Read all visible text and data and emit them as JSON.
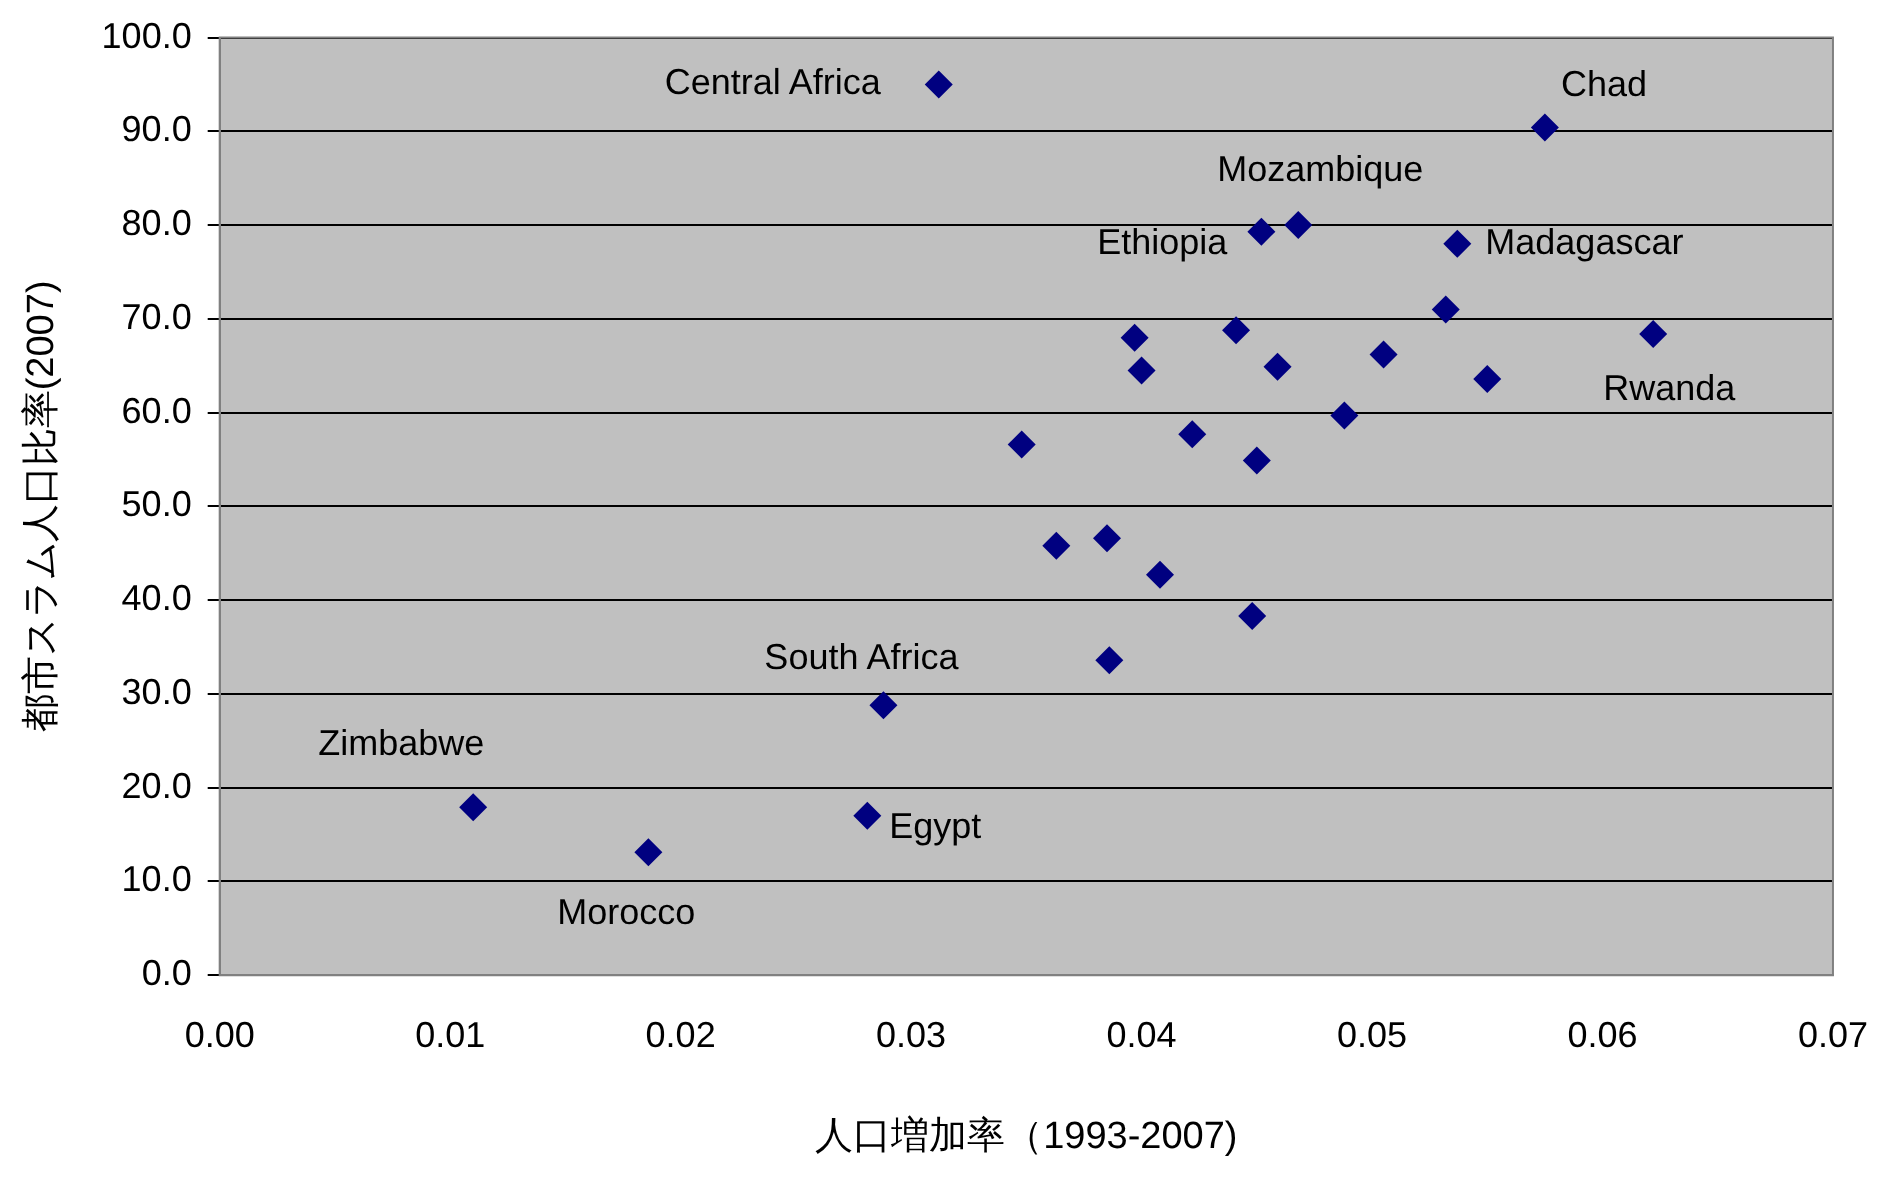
{
  "chart_data": {
    "type": "scatter",
    "xlabel": "人口増加率（1993-2007)",
    "ylabel": "都市スラム人口比率(2007)",
    "series": [
      {
        "color": "#000080",
        "x": [
          0.0312,
          0.0575,
          0.0468,
          0.0452,
          0.0537,
          0.0397,
          0.0441,
          0.0532,
          0.0622,
          0.04,
          0.0459,
          0.0505,
          0.055,
          0.0488,
          0.0422,
          0.0348,
          0.045,
          0.0363,
          0.0385,
          0.0408,
          0.0448,
          0.0386,
          0.0288,
          0.011,
          0.0281,
          0.0186
        ],
        "values": [
          95.0,
          90.4,
          80.0,
          79.3,
          78.0,
          68.0,
          68.8,
          71.0,
          68.4,
          64.5,
          64.9,
          66.2,
          63.6,
          59.7,
          57.7,
          56.6,
          54.9,
          45.8,
          46.6,
          42.7,
          38.3,
          33.6,
          28.8,
          17.9,
          17.0,
          13.1
        ]
      }
    ],
    "xlim": [
      0,
      0.07
    ],
    "xticks": [
      {
        "value": 0,
        "label": "0.00"
      },
      {
        "value": 0.01,
        "label": "0.01"
      },
      {
        "value": 0.02,
        "label": "0.02"
      },
      {
        "value": 0.03,
        "label": "0.03"
      },
      {
        "value": 0.04,
        "label": "0.04"
      },
      {
        "value": 0.05,
        "label": "0.05"
      },
      {
        "value": 0.06,
        "label": "0.06"
      },
      {
        "value": 0.07,
        "label": "0.07"
      }
    ],
    "ylim": [
      0,
      100
    ],
    "yticks": [
      {
        "value": 0,
        "label": "0.0"
      },
      {
        "value": 10,
        "label": "10.0"
      },
      {
        "value": 20,
        "label": "20.0"
      },
      {
        "value": 30,
        "label": "30.0"
      },
      {
        "value": 40,
        "label": "40.0"
      },
      {
        "value": 50,
        "label": "50.0"
      },
      {
        "value": 60,
        "label": "60.0"
      },
      {
        "value": 70,
        "label": "70.0"
      },
      {
        "value": 80,
        "label": "80.0"
      },
      {
        "value": 90,
        "label": "90.0"
      },
      {
        "value": 100,
        "label": "100.0"
      }
    ],
    "grid": "y",
    "marker": "diamond",
    "legend": false,
    "annotations": [
      {
        "text": "Central Africa",
        "x": 0.0312,
        "y": 95.0
      },
      {
        "text": "Chad",
        "x": 0.0575,
        "y": 90.4
      },
      {
        "text": "Mozambique",
        "x": 0.0468,
        "y": 80.0
      },
      {
        "text": "Ethiopia",
        "x": 0.0452,
        "y": 79.3
      },
      {
        "text": "Madagascar",
        "x": 0.0537,
        "y": 78.0
      },
      {
        "text": "Rwanda",
        "x": 0.0622,
        "y": 68.4
      },
      {
        "text": "South Africa",
        "x": 0.0288,
        "y": 28.8
      },
      {
        "text": "Zimbabwe",
        "x": 0.011,
        "y": 17.9
      },
      {
        "text": "Egypt",
        "x": 0.0281,
        "y": 17.0
      },
      {
        "text": "Morocco",
        "x": 0.0186,
        "y": 13.1
      }
    ]
  }
}
